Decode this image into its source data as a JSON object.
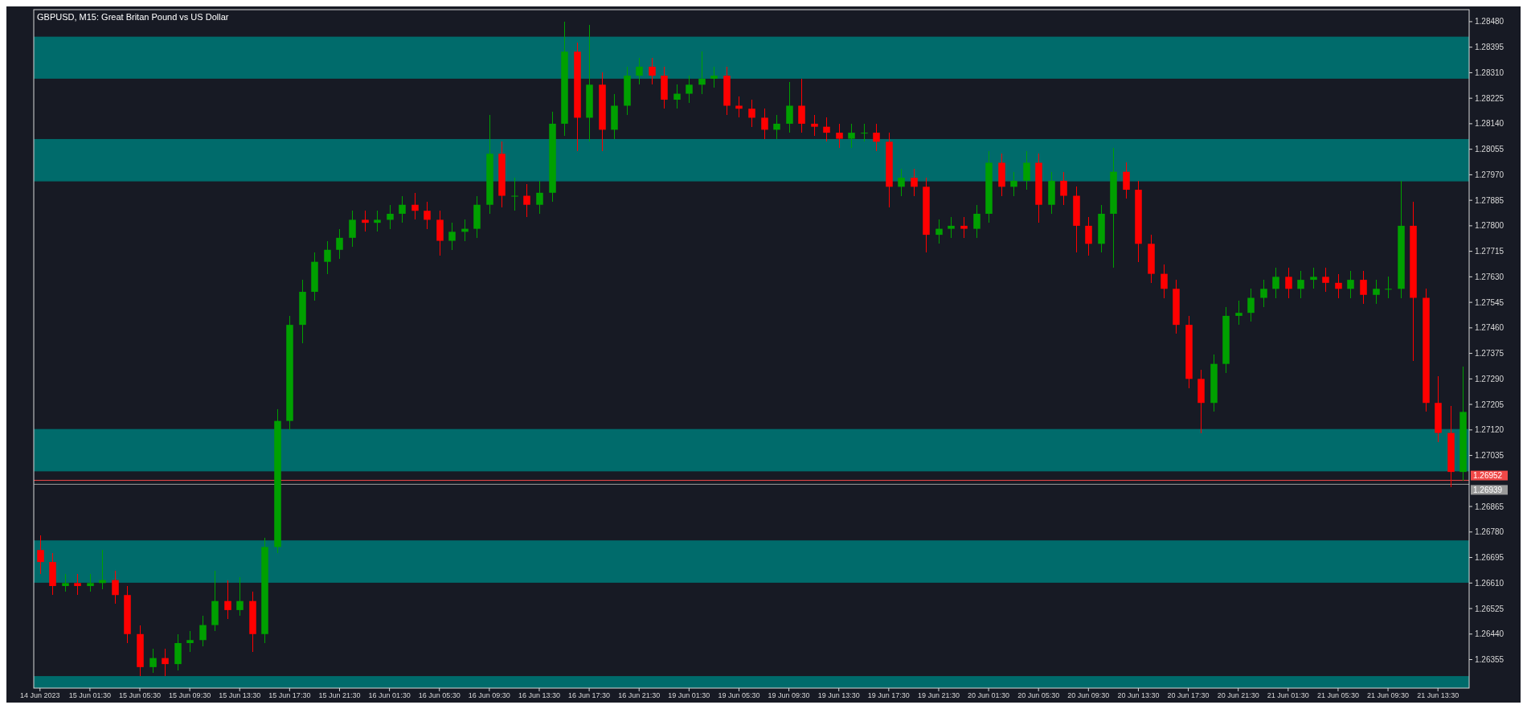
{
  "chart_data": {
    "type": "candlestick",
    "title": "GBPUSD, M15: Great Britan Pound vs US Dollar",
    "categories": [
      "14 Jun 2023",
      null,
      null,
      null,
      "15 Jun 01:30",
      null,
      null,
      null,
      "15 Jun 05:30",
      null,
      null,
      null,
      "15 Jun 09:30",
      null,
      null,
      null,
      "15 Jun 13:30",
      null,
      null,
      null,
      "15 Jun 17:30",
      null,
      null,
      null,
      "15 Jun 21:30",
      null,
      null,
      null,
      "16 Jun 01:30",
      null,
      null,
      null,
      "16 Jun 05:30",
      null,
      null,
      null,
      "16 Jun 09:30",
      null,
      null,
      null,
      "16 Jun 13:30",
      null,
      null,
      null,
      "16 Jun 17:30",
      null,
      null,
      null,
      "16 Jun 21:30",
      null,
      null,
      null,
      "19 Jun 01:30",
      null,
      null,
      null,
      "19 Jun 05:30",
      null,
      null,
      null,
      "19 Jun 09:30",
      null,
      null,
      null,
      "19 Jun 13:30",
      null,
      null,
      null,
      "19 Jun 17:30",
      null,
      null,
      null,
      "19 Jun 21:30",
      null,
      null,
      null,
      "20 Jun 01:30",
      null,
      null,
      null,
      "20 Jun 05:30",
      null,
      null,
      null,
      "20 Jun 09:30",
      null,
      null,
      null,
      "20 Jun 13:30",
      null,
      null,
      null,
      "20 Jun 17:30",
      null,
      null,
      null,
      "20 Jun 21:30",
      null,
      null,
      null,
      "21 Jun 01:30",
      null,
      null,
      null,
      "21 Jun 05:30",
      null,
      null,
      null,
      "21 Jun 09:30",
      null,
      null,
      null,
      "21 Jun 13:30",
      null,
      null
    ],
    "ohlc": [
      [
        1.2672,
        1.2677,
        1.2664,
        1.2668
      ],
      [
        1.2668,
        1.2671,
        1.2657,
        1.266
      ],
      [
        1.266,
        1.2664,
        1.2658,
        1.2661
      ],
      [
        1.2661,
        1.2664,
        1.2657,
        1.266
      ],
      [
        1.266,
        1.2664,
        1.2658,
        1.2661
      ],
      [
        1.2661,
        1.2672,
        1.2659,
        1.2662
      ],
      [
        1.2662,
        1.2665,
        1.2654,
        1.2657
      ],
      [
        1.2657,
        1.266,
        1.2641,
        1.2644
      ],
      [
        1.2644,
        1.2647,
        1.263,
        1.2633
      ],
      [
        1.2633,
        1.2639,
        1.2631,
        1.2636
      ],
      [
        1.2636,
        1.2639,
        1.263,
        1.2634
      ],
      [
        1.2634,
        1.2644,
        1.2632,
        1.2641
      ],
      [
        1.2641,
        1.2645,
        1.2638,
        1.2642
      ],
      [
        1.2642,
        1.265,
        1.264,
        1.2647
      ],
      [
        1.2647,
        1.2665,
        1.2645,
        1.2655
      ],
      [
        1.2655,
        1.2662,
        1.2649,
        1.2652
      ],
      [
        1.2652,
        1.2663,
        1.265,
        1.2655
      ],
      [
        1.2655,
        1.2658,
        1.2638,
        1.2644
      ],
      [
        1.2644,
        1.2676,
        1.2641,
        1.2673
      ],
      [
        1.2673,
        1.2719,
        1.2671,
        1.2715
      ],
      [
        1.2715,
        1.275,
        1.2712,
        1.2747
      ],
      [
        1.2747,
        1.2762,
        1.2741,
        1.2758
      ],
      [
        1.2758,
        1.2771,
        1.2755,
        1.2768
      ],
      [
        1.2768,
        1.2775,
        1.2764,
        1.2772
      ],
      [
        1.2772,
        1.2779,
        1.2769,
        1.2776
      ],
      [
        1.2776,
        1.2785,
        1.2773,
        1.2782
      ],
      [
        1.2782,
        1.2785,
        1.2778,
        1.2781
      ],
      [
        1.2781,
        1.2785,
        1.2778,
        1.2782
      ],
      [
        1.2782,
        1.2787,
        1.2779,
        1.2784
      ],
      [
        1.2784,
        1.279,
        1.2781,
        1.2787
      ],
      [
        1.2787,
        1.2791,
        1.2782,
        1.2785
      ],
      [
        1.2785,
        1.2788,
        1.2779,
        1.2782
      ],
      [
        1.2782,
        1.2785,
        1.277,
        1.2775
      ],
      [
        1.2775,
        1.2781,
        1.2772,
        1.2778
      ],
      [
        1.2778,
        1.2782,
        1.2775,
        1.2779
      ],
      [
        1.2779,
        1.279,
        1.2776,
        1.2787
      ],
      [
        1.2787,
        1.2817,
        1.2784,
        1.2804
      ],
      [
        1.2804,
        1.2808,
        1.2786,
        1.279
      ],
      [
        1.279,
        1.2796,
        1.2785,
        1.279
      ],
      [
        1.279,
        1.2794,
        1.2783,
        1.2787
      ],
      [
        1.2787,
        1.2795,
        1.2784,
        1.2791
      ],
      [
        1.2791,
        1.2818,
        1.2788,
        1.2814
      ],
      [
        1.2814,
        1.2848,
        1.281,
        1.2838
      ],
      [
        1.2838,
        1.2841,
        1.2805,
        1.2816
      ],
      [
        1.2816,
        1.2847,
        1.2808,
        1.2827
      ],
      [
        1.2827,
        1.2831,
        1.2805,
        1.2812
      ],
      [
        1.2812,
        1.2824,
        1.2809,
        1.282
      ],
      [
        1.282,
        1.2833,
        1.2817,
        1.283
      ],
      [
        1.283,
        1.2836,
        1.2827,
        1.2833
      ],
      [
        1.2833,
        1.2836,
        1.2827,
        1.283
      ],
      [
        1.283,
        1.2833,
        1.2819,
        1.2822
      ],
      [
        1.2822,
        1.2827,
        1.2819,
        1.2824
      ],
      [
        1.2824,
        1.283,
        1.2821,
        1.2827
      ],
      [
        1.2827,
        1.2838,
        1.2824,
        1.2829
      ],
      [
        1.2829,
        1.2833,
        1.2826,
        1.283
      ],
      [
        1.283,
        1.2833,
        1.2817,
        1.282
      ],
      [
        1.282,
        1.2823,
        1.2816,
        1.2819
      ],
      [
        1.2819,
        1.2822,
        1.2813,
        1.2816
      ],
      [
        1.2816,
        1.2819,
        1.2809,
        1.2812
      ],
      [
        1.2812,
        1.2817,
        1.2809,
        1.2814
      ],
      [
        1.2814,
        1.2828,
        1.2811,
        1.282
      ],
      [
        1.282,
        1.2829,
        1.2811,
        1.2814
      ],
      [
        1.2814,
        1.2817,
        1.281,
        1.2813
      ],
      [
        1.2813,
        1.2816,
        1.2808,
        1.2811
      ],
      [
        1.2811,
        1.2814,
        1.2806,
        1.2809
      ],
      [
        1.2809,
        1.2814,
        1.2806,
        1.2811
      ],
      [
        1.2811,
        1.2814,
        1.2808,
        1.2811
      ],
      [
        1.2811,
        1.2814,
        1.2805,
        1.2808
      ],
      [
        1.2808,
        1.2811,
        1.2786,
        1.2793
      ],
      [
        1.2793,
        1.2799,
        1.279,
        1.2796
      ],
      [
        1.2796,
        1.2799,
        1.279,
        1.2793
      ],
      [
        1.2793,
        1.2796,
        1.2771,
        1.2777
      ],
      [
        1.2777,
        1.2782,
        1.2774,
        1.2779
      ],
      [
        1.2779,
        1.2783,
        1.2776,
        1.278
      ],
      [
        1.278,
        1.2783,
        1.2776,
        1.2779
      ],
      [
        1.2779,
        1.2787,
        1.2776,
        1.2784
      ],
      [
        1.2784,
        1.2805,
        1.2781,
        1.2801
      ],
      [
        1.2801,
        1.2804,
        1.279,
        1.2793
      ],
      [
        1.2793,
        1.2798,
        1.279,
        1.2795
      ],
      [
        1.2795,
        1.2805,
        1.2792,
        1.2801
      ],
      [
        1.2801,
        1.2804,
        1.2781,
        1.2787
      ],
      [
        1.2787,
        1.2798,
        1.2784,
        1.2795
      ],
      [
        1.2795,
        1.2798,
        1.2787,
        1.279
      ],
      [
        1.279,
        1.2793,
        1.2771,
        1.278
      ],
      [
        1.278,
        1.2783,
        1.277,
        1.2774
      ],
      [
        1.2774,
        1.2787,
        1.2771,
        1.2784
      ],
      [
        1.2784,
        1.2806,
        1.2766,
        1.2798
      ],
      [
        1.2798,
        1.2801,
        1.2789,
        1.2792
      ],
      [
        1.2792,
        1.2795,
        1.2768,
        1.2774
      ],
      [
        1.2774,
        1.2777,
        1.2761,
        1.2764
      ],
      [
        1.2764,
        1.2767,
        1.2756,
        1.2759
      ],
      [
        1.2759,
        1.2762,
        1.2744,
        1.2747
      ],
      [
        1.2747,
        1.275,
        1.2726,
        1.2729
      ],
      [
        1.2729,
        1.2732,
        1.2711,
        1.2721
      ],
      [
        1.2721,
        1.2737,
        1.2718,
        1.2734
      ],
      [
        1.2734,
        1.2753,
        1.2731,
        1.275
      ],
      [
        1.275,
        1.2755,
        1.2747,
        1.2751
      ],
      [
        1.2751,
        1.2759,
        1.2748,
        1.2756
      ],
      [
        1.2756,
        1.2762,
        1.2753,
        1.2759
      ],
      [
        1.2759,
        1.2766,
        1.2756,
        1.2763
      ],
      [
        1.2763,
        1.2766,
        1.2756,
        1.2759
      ],
      [
        1.2759,
        1.2765,
        1.2756,
        1.2762
      ],
      [
        1.2762,
        1.2766,
        1.2759,
        1.2763
      ],
      [
        1.2763,
        1.2766,
        1.2758,
        1.2761
      ],
      [
        1.2761,
        1.2764,
        1.2756,
        1.2759
      ],
      [
        1.2759,
        1.2765,
        1.2756,
        1.2762
      ],
      [
        1.2762,
        1.2765,
        1.2754,
        1.2757
      ],
      [
        1.2757,
        1.2762,
        1.2754,
        1.2759
      ],
      [
        1.2759,
        1.2763,
        1.2756,
        1.2759
      ],
      [
        1.2759,
        1.2795,
        1.2756,
        1.278
      ],
      [
        1.278,
        1.2788,
        1.2735,
        1.2756
      ],
      [
        1.2756,
        1.2759,
        1.2718,
        1.2721
      ],
      [
        1.2721,
        1.273,
        1.2708,
        1.2711
      ],
      [
        1.2711,
        1.272,
        1.2693,
        1.2698
      ],
      [
        1.2698,
        1.2733,
        1.2695,
        1.2718
      ]
    ],
    "colors": [
      "#ff0000",
      "#ff0000",
      "#00a000",
      "#ff0000",
      "#00a000",
      "#00a000",
      "#ff0000",
      "#ff0000",
      "#ff0000",
      "#00a000",
      "#ff0000",
      "#00a000",
      "#00a000",
      "#00a000",
      "#00a000",
      "#ff0000",
      "#00a000",
      "#ff0000",
      "#00a000",
      "#00a000",
      "#00a000",
      "#00a000",
      "#00a000",
      "#00a000",
      "#00a000",
      "#00a000",
      "#ff0000",
      "#00a000",
      "#00a000",
      "#00a000",
      "#ff0000",
      "#ff0000",
      "#ff0000",
      "#00a000",
      "#00a000",
      "#00a000",
      "#00a000",
      "#ff0000",
      "#00a000",
      "#ff0000",
      "#00a000",
      "#00a000",
      "#00a000",
      "#ff0000",
      "#00a000",
      "#ff0000",
      "#00a000",
      "#00a000",
      "#00a000",
      "#ff0000",
      "#ff0000",
      "#00a000",
      "#00a000",
      "#00a000",
      "#00a000",
      "#ff0000",
      "#ff0000",
      "#ff0000",
      "#ff0000",
      "#00a000",
      "#00a000",
      "#ff0000",
      "#ff0000",
      "#ff0000",
      "#ff0000",
      "#00a000",
      "#00a000",
      "#ff0000",
      "#ff0000",
      "#00a000",
      "#ff0000",
      "#ff0000",
      "#00a000",
      "#00a000",
      "#ff0000",
      "#00a000",
      "#00a000",
      "#ff0000",
      "#00a000",
      "#00a000",
      "#ff0000",
      "#00a000",
      "#ff0000",
      "#ff0000",
      "#ff0000",
      "#00a000",
      "#00a000",
      "#ff0000",
      "#ff0000",
      "#ff0000",
      "#ff0000",
      "#ff0000",
      "#ff0000",
      "#ff0000",
      "#00a000",
      "#00a000",
      "#00a000",
      "#00a000",
      "#00a000",
      "#00a000",
      "#ff0000",
      "#00a000",
      "#00a000",
      "#ff0000",
      "#ff0000",
      "#00a000",
      "#ff0000",
      "#00a000",
      "#00a000",
      "#00a000",
      "#ff0000",
      "#ff0000",
      "#ff0000",
      "#ff0000",
      "#00a000"
    ],
    "ylim": [
      1.2626,
      1.2852
    ],
    "yticks": [
      {
        "value": 1.2848,
        "label": "1.28480"
      },
      {
        "value": 1.28395,
        "label": "1.28395"
      },
      {
        "value": 1.2831,
        "label": "1.28310"
      },
      {
        "value": 1.28225,
        "label": "1.28225"
      },
      {
        "value": 1.2814,
        "label": "1.28140"
      },
      {
        "value": 1.28055,
        "label": "1.28055"
      },
      {
        "value": 1.2797,
        "label": "1.27970"
      },
      {
        "value": 1.27885,
        "label": "1.27885"
      },
      {
        "value": 1.278,
        "label": "1.27800"
      },
      {
        "value": 1.27715,
        "label": "1.27715"
      },
      {
        "value": 1.2763,
        "label": "1.27630"
      },
      {
        "value": 1.27545,
        "label": "1.27545"
      },
      {
        "value": 1.2746,
        "label": "1.27460"
      },
      {
        "value": 1.27375,
        "label": "1.27375"
      },
      {
        "value": 1.2729,
        "label": "1.27290"
      },
      {
        "value": 1.27205,
        "label": "1.27205"
      },
      {
        "value": 1.2712,
        "label": "1.27120"
      },
      {
        "value": 1.27035,
        "label": "1.27035"
      },
      {
        "value": 1.26865,
        "label": "1.26865"
      },
      {
        "value": 1.2678,
        "label": "1.26780"
      },
      {
        "value": 1.26695,
        "label": "1.26695"
      },
      {
        "value": 1.2661,
        "label": "1.26610"
      },
      {
        "value": 1.26525,
        "label": "1.26525"
      },
      {
        "value": 1.2644,
        "label": "1.26440"
      },
      {
        "value": 1.26355,
        "label": "1.26355"
      }
    ],
    "bands": [
      {
        "axis": "y",
        "from": 1.2829,
        "to": 1.2843,
        "color": "#006b6b"
      },
      {
        "axis": "y",
        "from": 1.27948,
        "to": 1.28089,
        "color": "#006b6b"
      },
      {
        "axis": "y",
        "from": 1.26982,
        "to": 1.27123,
        "color": "#006b6b"
      },
      {
        "axis": "y",
        "from": 1.26611,
        "to": 1.26752,
        "color": "#006b6b"
      },
      {
        "axis": "y",
        "from": 1.2626,
        "to": 1.263,
        "color": "#006b6b"
      }
    ],
    "ref_lines": [
      {
        "axis": "y",
        "value": 1.26952,
        "label": "1.26952",
        "color": "#f04848"
      },
      {
        "axis": "y",
        "value": 1.26939,
        "label": "1.26939",
        "color": "#9a9a9a"
      }
    ],
    "grid": false
  }
}
